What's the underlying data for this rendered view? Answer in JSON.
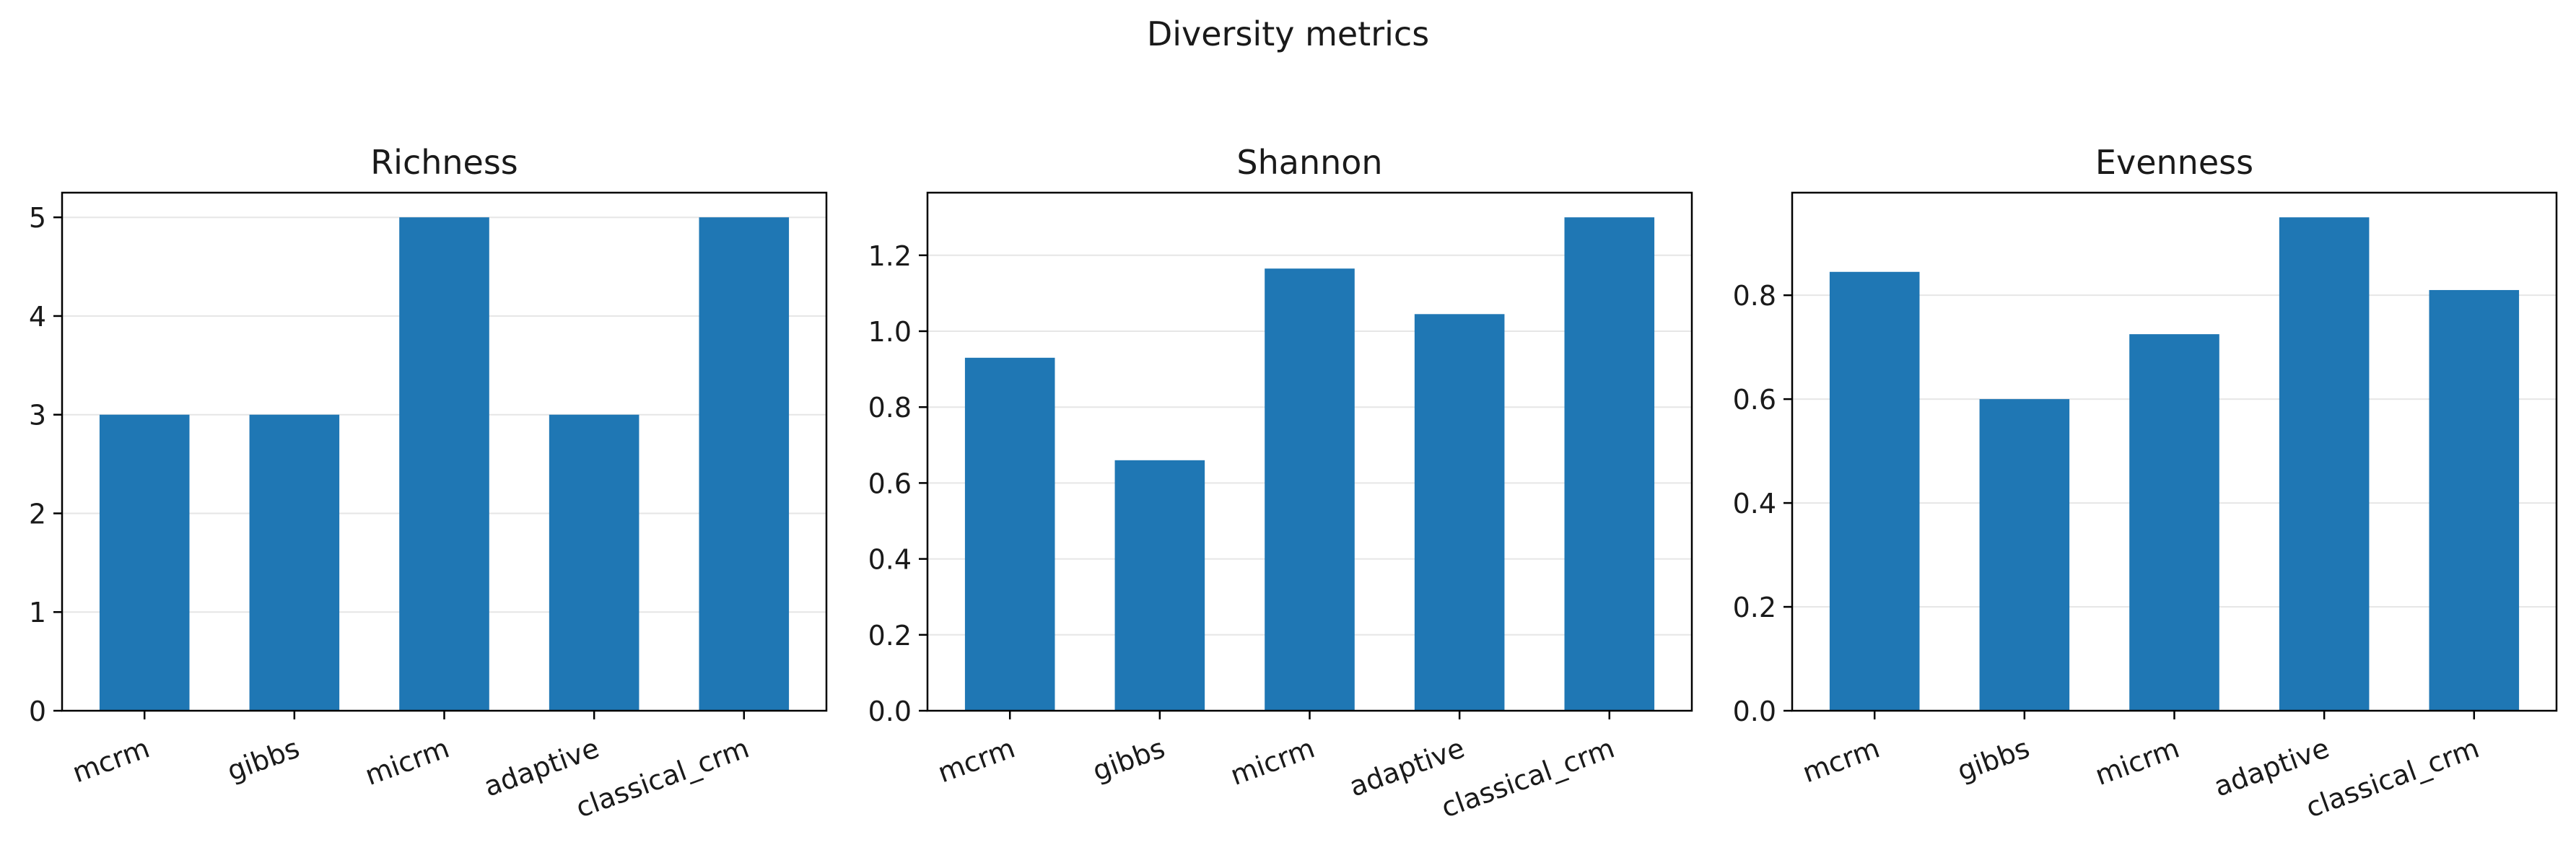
{
  "figure": {
    "title": "Diversity metrics"
  },
  "colors": {
    "bar": "#1f77b4",
    "grid": "#e6e6e6",
    "axis": "#000000",
    "text": "#1a1a1a"
  },
  "chart_data": [
    {
      "type": "bar",
      "title": "Richness",
      "xlabel": "",
      "ylabel": "",
      "categories": [
        "mcrm",
        "gibbs",
        "micrm",
        "adaptive",
        "classical_crm"
      ],
      "values": [
        3,
        3,
        5,
        3,
        5
      ],
      "ylim": [
        0,
        5.25
      ],
      "yticks": [
        0,
        1,
        2,
        3,
        4,
        5
      ],
      "ytick_labels": [
        "0",
        "1",
        "2",
        "3",
        "4",
        "5"
      ],
      "grid": "y",
      "legend": "none"
    },
    {
      "type": "bar",
      "title": "Shannon",
      "xlabel": "",
      "ylabel": "",
      "categories": [
        "mcrm",
        "gibbs",
        "micrm",
        "adaptive",
        "classical_crm"
      ],
      "values": [
        0.93,
        0.66,
        1.165,
        1.045,
        1.3
      ],
      "ylim": [
        0,
        1.365
      ],
      "yticks": [
        0,
        0.2,
        0.4,
        0.6,
        0.8,
        1.0,
        1.2
      ],
      "ytick_labels": [
        "0.0",
        "0.2",
        "0.4",
        "0.6",
        "0.8",
        "1.0",
        "1.2"
      ],
      "grid": "y",
      "legend": "none"
    },
    {
      "type": "bar",
      "title": "Evenness",
      "xlabel": "",
      "ylabel": "",
      "categories": [
        "mcrm",
        "gibbs",
        "micrm",
        "adaptive",
        "classical_crm"
      ],
      "values": [
        0.845,
        0.6,
        0.725,
        0.95,
        0.81
      ],
      "ylim": [
        0,
        0.9975
      ],
      "yticks": [
        0,
        0.2,
        0.4,
        0.6,
        0.8
      ],
      "ytick_labels": [
        "0.0",
        "0.2",
        "0.4",
        "0.6",
        "0.8"
      ],
      "grid": "y",
      "legend": "none"
    }
  ]
}
